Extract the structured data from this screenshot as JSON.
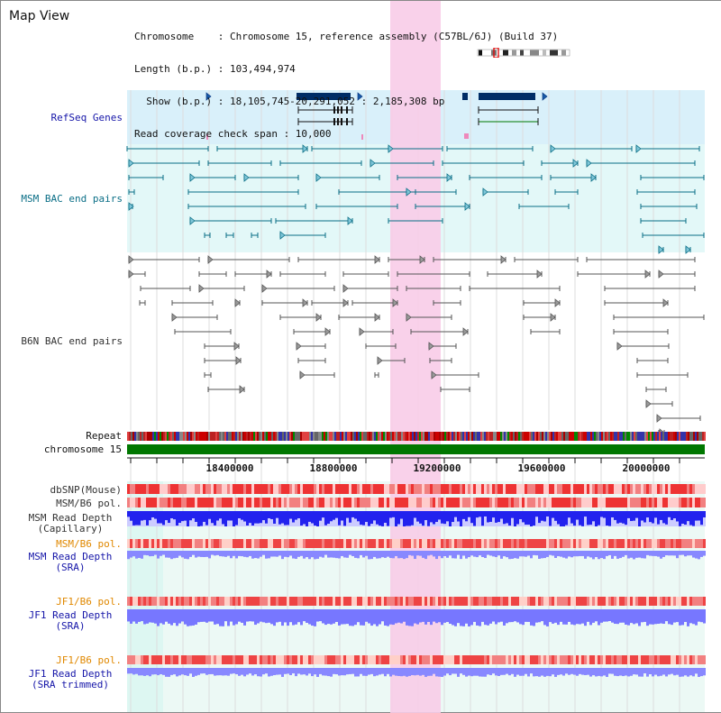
{
  "window": {
    "title": "Map View"
  },
  "info": {
    "chromosome_line": "Chromosome    : Chromosome 15, reference assembly (C57BL/6J) (Build 37)",
    "length_line": "Length (b.p.) : 103,494,974",
    "show_line": "  Show (b.p.) : 18,105,745-20,291,052 : 2,185,308 bp",
    "coverage_line": "Read coverage check span : 10,000"
  },
  "ruler": {
    "start_bp": 18105745,
    "end_bp": 20291052,
    "tick_labels": [
      "18400000",
      "18800000",
      "19200000",
      "19600000",
      "20000000"
    ],
    "tick_values": [
      18400000,
      18800000,
      19200000,
      19600000,
      20000000
    ]
  },
  "highlight": {
    "start_bp": 19100000,
    "end_bp": 19290000,
    "color": "#f8cce8"
  },
  "tracks": {
    "refseq": {
      "label": "RefSeq Genes",
      "color": "#1515a8"
    },
    "msm_bac": {
      "label": "MSM BAC end pairs",
      "color": "#0a6e86"
    },
    "b6n_bac": {
      "label": "B6N BAC end pairs",
      "color": "#333333"
    },
    "repeat": {
      "label": "Repeat"
    },
    "chromosome": {
      "label": "chromosome 15",
      "color": "#007700"
    },
    "dbsnp": {
      "label": "dbSNP(Mouse)"
    },
    "msm_b6_pol": {
      "label": "MSM/B6 pol."
    },
    "msm_depth_cap": {
      "label": "MSM Read Depth\n(Capillary)"
    },
    "msm_b6_pol_sra": {
      "label": "MSM/B6 pol.",
      "color": "#e08800"
    },
    "msm_depth_sra": {
      "label": "MSM Read Depth\n(SRA)",
      "color": "#1515a8"
    },
    "jf1_b6_pol": {
      "label": "JF1/B6 pol.",
      "color": "#e08800"
    },
    "jf1_depth_sra": {
      "label": "JF1 Read Depth\n(SRA)",
      "color": "#1515a8"
    },
    "jf1_b6_pol_trim": {
      "label": "JF1/B6 pol.",
      "color": "#e08800"
    },
    "jf1_depth_trim": {
      "label": "JF1 Read Depth\n(SRA trimmed)",
      "color": "#1515a8"
    }
  },
  "colors": {
    "refseq_bg": "#d9f0fa",
    "msm_bg": "#e3f8f8",
    "lower_bg": "#ecf9f5",
    "gene_body": "#002d66",
    "depth_blue": "#2222ee",
    "depth_light": "#8888ff",
    "pol_red": "#ee3333",
    "pol_light": "#ffcccc"
  }
}
